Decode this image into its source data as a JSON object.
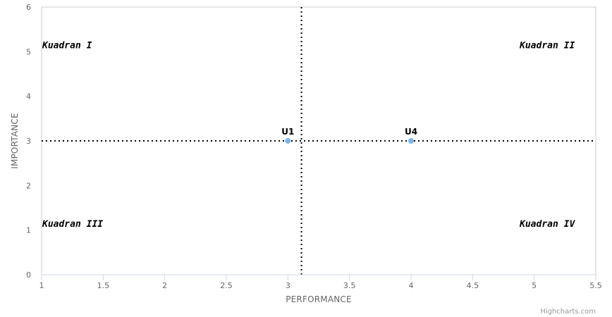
{
  "chart_data": {
    "type": "scatter",
    "xlabel": "PERFORMANCE",
    "ylabel": "IMPORTANCE",
    "xlim": [
      1,
      5.5
    ],
    "ylim": [
      0,
      6
    ],
    "x_ticks": [
      "1",
      "1.5",
      "2",
      "2.5",
      "3",
      "3.5",
      "4",
      "4.5",
      "5",
      "5.5"
    ],
    "y_ticks": [
      "0",
      "1",
      "2",
      "3",
      "4",
      "5",
      "6"
    ],
    "grid": false,
    "series": [
      {
        "color": "#7cb5ec",
        "points": [
          {
            "label": "U1",
            "x": 3,
            "y": 3
          },
          {
            "label": "U4",
            "x": 4,
            "y": 3
          }
        ]
      }
    ],
    "reference_lines": {
      "x": 3.11,
      "y": 3
    },
    "quadrants": [
      {
        "label": "Kuadran I",
        "x": 1.0,
        "y": 5.2,
        "anchor": "start"
      },
      {
        "label": "Kuadran II",
        "x": 5.33,
        "y": 5.2,
        "anchor": "end"
      },
      {
        "label": "Kuadran III",
        "x": 1.0,
        "y": 1.2,
        "anchor": "start"
      },
      {
        "label": "Kuadran IV",
        "x": 5.33,
        "y": 1.2,
        "anchor": "end"
      }
    ]
  },
  "credits": "Highcharts.com"
}
